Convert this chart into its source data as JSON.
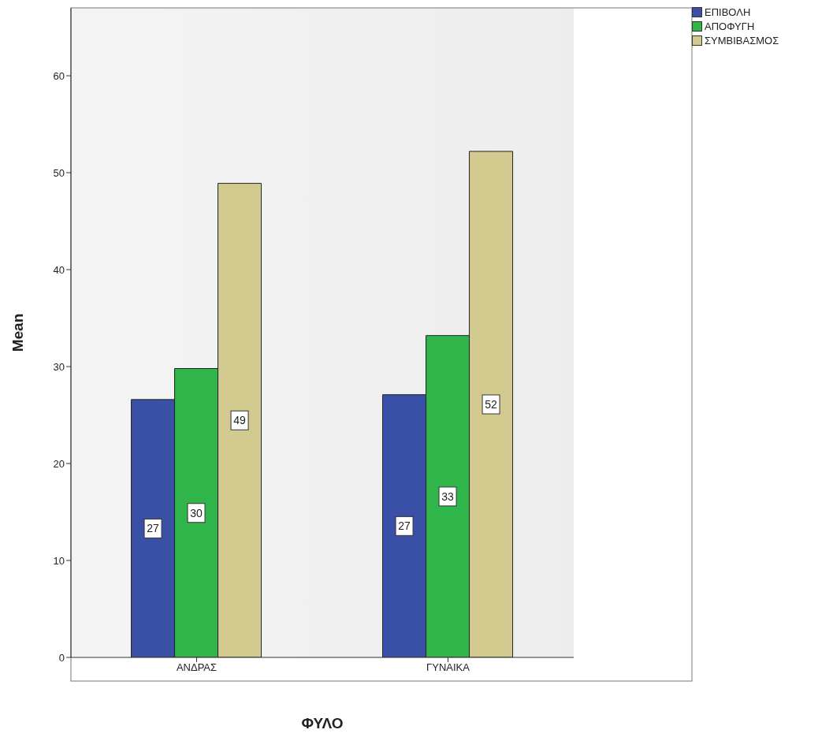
{
  "chart_data": {
    "type": "bar",
    "xlabel": "ΦΥΛΟ",
    "ylabel": "Mean",
    "categories": [
      "ΑΝΔΡΑΣ",
      "ΓΥΝΑΙΚΑ"
    ],
    "series": [
      {
        "name": "ΕΠΙΒΟΛΗ",
        "color": "#3a4fa6",
        "values": [
          26.6,
          27.1
        ],
        "value_labels": [
          "27",
          "27"
        ]
      },
      {
        "name": "ΑΠΟΦΥΓΗ",
        "color": "#2fb54a",
        "values": [
          29.8,
          33.2
        ],
        "value_labels": [
          "30",
          "33"
        ]
      },
      {
        "name": "ΣΥΜΒΙΒΑΣΜΟΣ",
        "color": "#d3ca90",
        "values": [
          48.9,
          52.2
        ],
        "value_labels": [
          "49",
          "52"
        ]
      }
    ],
    "ylim": [
      0,
      67
    ],
    "yticks": [
      0,
      10,
      20,
      30,
      40,
      50,
      60
    ],
    "grid": false,
    "legend": "top right"
  }
}
